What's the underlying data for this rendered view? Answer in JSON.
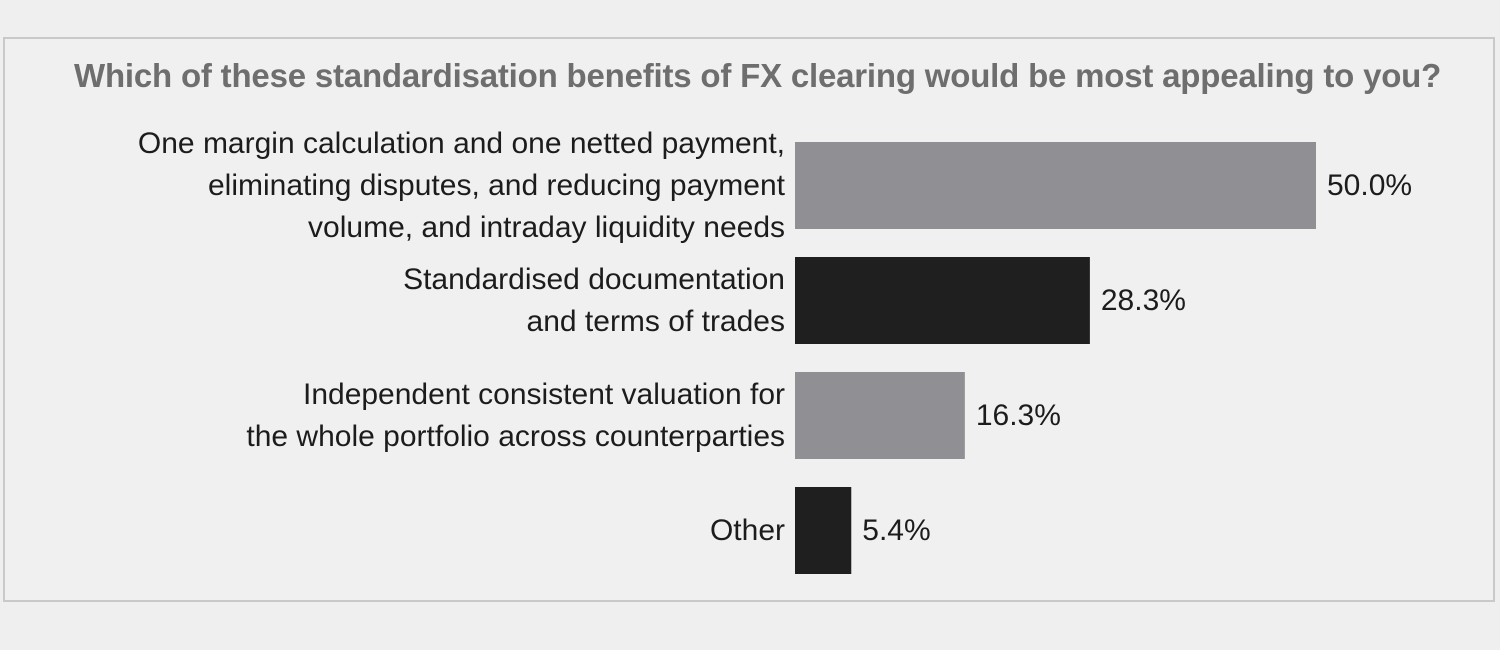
{
  "chart_data": {
    "type": "bar",
    "orientation": "horizontal",
    "title": "Which of these standardisation benefits of FX clearing would be most appealing to you?",
    "categories": [
      [
        "One margin calculation and one netted payment,",
        "eliminating disputes, and reducing payment",
        "volume, and intraday liquidity needs"
      ],
      [
        "Standardised documentation",
        "and terms of trades"
      ],
      [
        "Independent consistent valuation for",
        "the whole portfolio across counterparties"
      ],
      [
        "Other"
      ]
    ],
    "values": [
      50.0,
      28.3,
      16.3,
      5.4
    ],
    "value_labels": [
      "50.0%",
      "28.3%",
      "16.3%",
      "5.4%"
    ],
    "unit": "%",
    "xlim": [
      0,
      50
    ],
    "grid": false,
    "legend": "none",
    "colors": [
      "#909094",
      "#1f1f1f",
      "#909094",
      "#1f1f1f"
    ]
  }
}
